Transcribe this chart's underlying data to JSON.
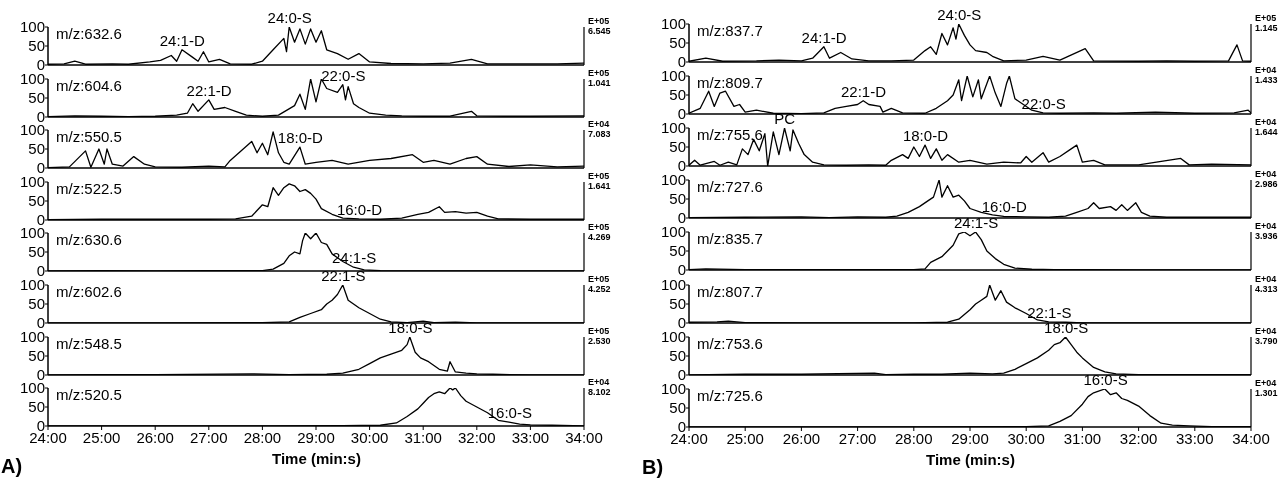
{
  "chart_data": [
    {
      "type": "line",
      "x": [
        24,
        24.3,
        24.5,
        24.7,
        25.2,
        25.5,
        25.9,
        26.1,
        26.3,
        26.4,
        26.5,
        26.7,
        26.8,
        26.9,
        27.0,
        27.2,
        27.4,
        27.8,
        28.0,
        28.2,
        28.4,
        28.45,
        28.5,
        28.6,
        28.7,
        28.8,
        28.9,
        29.0,
        29.1,
        29.2,
        29.4,
        29.6,
        29.8,
        30.0,
        30.4,
        31.0,
        31.5,
        31.9,
        32.2,
        33.0,
        33.5,
        34
      ],
      "values": [
        2,
        3,
        10,
        2,
        3,
        2,
        8,
        12,
        25,
        10,
        40,
        20,
        10,
        35,
        8,
        15,
        3,
        2,
        10,
        40,
        70,
        35,
        100,
        60,
        95,
        55,
        95,
        60,
        90,
        40,
        30,
        15,
        30,
        8,
        4,
        3,
        5,
        15,
        3,
        3,
        3,
        5
      ],
      "color": "#000000",
      "xlim": [
        24,
        34
      ],
      "ylim": [
        0,
        100
      ],
      "yticks": [
        0,
        50,
        100
      ],
      "marker": "none",
      "tick_labels": "y",
      "annotations": [
        "m/z:632.6",
        "E+05",
        "6.545",
        {
          "text": "24:1-D",
          "x": 26.5,
          "y": 40
        },
        {
          "text": "24:0-S",
          "x": 28.5,
          "y": 100
        }
      ]
    },
    {
      "type": "line",
      "x": [
        24,
        24.5,
        25,
        25.5,
        26,
        26.4,
        26.6,
        26.7,
        26.8,
        27.0,
        27.1,
        27.3,
        27.5,
        27.7,
        28.0,
        28.3,
        28.6,
        28.7,
        28.8,
        28.9,
        29.0,
        29.1,
        29.2,
        29.4,
        29.5,
        29.55,
        29.6,
        29.7,
        29.8,
        30.0,
        30.3,
        30.6,
        31.0,
        31.5,
        31.9,
        32.0,
        32.5,
        33,
        34
      ],
      "values": [
        1,
        3,
        2,
        1,
        2,
        5,
        10,
        35,
        15,
        45,
        20,
        25,
        15,
        5,
        2,
        5,
        30,
        60,
        20,
        100,
        40,
        100,
        75,
        65,
        85,
        45,
        80,
        35,
        25,
        10,
        5,
        3,
        2,
        2,
        15,
        3,
        2,
        2,
        3
      ],
      "color": "#000000",
      "xlim": [
        24,
        34
      ],
      "ylim": [
        0,
        100
      ],
      "yticks": [
        0,
        50,
        100
      ],
      "marker": "none",
      "tick_labels": "y",
      "annotations": [
        "m/z:604.6",
        "E+05",
        "1.041",
        {
          "text": "22:1-D",
          "x": 27.0,
          "y": 45
        },
        {
          "text": "22:0-S",
          "x": 29.5,
          "y": 85
        }
      ]
    },
    {
      "type": "line",
      "x": [
        24,
        24.4,
        24.7,
        24.8,
        24.95,
        25.05,
        25.1,
        25.2,
        25.4,
        25.6,
        25.8,
        26,
        26.5,
        27.0,
        27.3,
        27.4,
        27.6,
        27.8,
        27.9,
        28.0,
        28.1,
        28.2,
        28.3,
        28.4,
        28.5,
        28.7,
        28.8,
        29.0,
        29.3,
        29.6,
        30.0,
        30.4,
        30.8,
        31.0,
        31.2,
        31.5,
        31.8,
        32.0,
        32.2,
        32.6,
        33.0,
        33.5,
        34
      ],
      "values": [
        1,
        3,
        45,
        2,
        50,
        10,
        50,
        10,
        5,
        30,
        10,
        3,
        2,
        5,
        3,
        20,
        45,
        70,
        40,
        65,
        35,
        95,
        40,
        15,
        10,
        55,
        10,
        15,
        20,
        10,
        20,
        25,
        35,
        15,
        20,
        10,
        25,
        30,
        10,
        4,
        8,
        3,
        5
      ],
      "color": "#000000",
      "xlim": [
        24,
        34
      ],
      "ylim": [
        0,
        100
      ],
      "yticks": [
        0,
        50,
        100
      ],
      "marker": "none",
      "tick_labels": "y",
      "annotations": [
        "m/z:550.5",
        "E+04",
        "7.083",
        {
          "text": "18:0-D",
          "x": 28.7,
          "y": 55
        }
      ]
    },
    {
      "type": "line",
      "x": [
        24,
        25,
        26,
        27,
        27.5,
        27.8,
        28.0,
        28.1,
        28.2,
        28.3,
        28.4,
        28.5,
        28.6,
        28.7,
        28.8,
        28.9,
        29.0,
        29.1,
        29.3,
        29.5,
        29.8,
        30.2,
        30.6,
        30.9,
        31.1,
        31.3,
        31.4,
        31.6,
        31.8,
        32.0,
        32.2,
        32.4,
        33,
        34
      ],
      "values": [
        1,
        2,
        2,
        2,
        3,
        10,
        40,
        35,
        85,
        65,
        85,
        95,
        90,
        75,
        80,
        70,
        55,
        30,
        15,
        5,
        3,
        2,
        5,
        15,
        20,
        35,
        20,
        22,
        18,
        20,
        10,
        3,
        2,
        2
      ],
      "color": "#000000",
      "xlim": [
        24,
        34
      ],
      "ylim": [
        0,
        100
      ],
      "yticks": [
        0,
        50,
        100
      ],
      "marker": "none",
      "tick_labels": "y",
      "annotations": [
        "m/z:522.5",
        "E+05",
        "1.641",
        {
          "text": "16:0-D",
          "x": 29.8,
          "y": 3
        }
      ]
    },
    {
      "type": "line",
      "x": [
        24,
        25,
        26,
        27,
        28.0,
        28.2,
        28.4,
        28.5,
        28.6,
        28.7,
        28.75,
        28.8,
        28.9,
        29.0,
        29.1,
        29.2,
        29.3,
        29.5,
        29.7,
        29.9,
        30.2,
        31,
        32,
        33,
        34
      ],
      "values": [
        0,
        1,
        0,
        1,
        1,
        5,
        20,
        40,
        50,
        45,
        80,
        100,
        85,
        100,
        75,
        70,
        45,
        25,
        10,
        3,
        1,
        0,
        0,
        0,
        0
      ],
      "color": "#000000",
      "xlim": [
        24,
        34
      ],
      "ylim": [
        0,
        100
      ],
      "yticks": [
        0,
        50,
        100
      ],
      "marker": "none",
      "tick_labels": "y",
      "annotations": [
        "m/z:630.6",
        "E+05",
        "4.269",
        {
          "text": "24:1-S",
          "x": 29.7,
          "y": 10
        }
      ]
    },
    {
      "type": "line",
      "x": [
        24,
        26,
        28,
        28.5,
        28.7,
        28.9,
        29.1,
        29.2,
        29.3,
        29.4,
        29.5,
        29.6,
        29.7,
        29.8,
        30.0,
        30.2,
        30.4,
        30.7,
        31.0,
        31.2,
        31.6,
        32,
        33,
        34
      ],
      "values": [
        0,
        0,
        1,
        3,
        15,
        25,
        35,
        50,
        60,
        75,
        100,
        60,
        50,
        40,
        25,
        10,
        3,
        1,
        5,
        1,
        2,
        0,
        0,
        0
      ],
      "color": "#000000",
      "xlim": [
        24,
        34
      ],
      "ylim": [
        0,
        100
      ],
      "yticks": [
        0,
        50,
        100
      ],
      "marker": "none",
      "tick_labels": "y",
      "annotations": [
        "m/z:602.6",
        "E+05",
        "4.252",
        {
          "text": "22:1-S",
          "x": 29.5,
          "y": 100
        }
      ]
    },
    {
      "type": "line",
      "x": [
        24,
        25,
        26,
        27.8,
        28.5,
        29.2,
        29.5,
        29.8,
        30.0,
        30.2,
        30.4,
        30.6,
        30.7,
        30.75,
        30.85,
        30.95,
        31.1,
        31.3,
        31.45,
        31.5,
        31.6,
        31.8,
        32.0,
        32.3,
        33,
        34
      ],
      "values": [
        0,
        1,
        1,
        3,
        1,
        2,
        5,
        15,
        30,
        45,
        55,
        65,
        80,
        100,
        60,
        45,
        35,
        15,
        10,
        35,
        8,
        5,
        3,
        2,
        0,
        0
      ],
      "color": "#000000",
      "xlim": [
        24,
        34
      ],
      "ylim": [
        0,
        100
      ],
      "yticks": [
        0,
        50,
        100
      ],
      "marker": "none",
      "tick_labels": "y",
      "annotations": [
        "m/z:548.5",
        "E+05",
        "2.530",
        {
          "text": "18:0-S",
          "x": 30.75,
          "y": 100
        }
      ]
    },
    {
      "type": "line",
      "x": [
        24,
        26,
        28,
        29.5,
        30.2,
        30.5,
        30.7,
        30.9,
        31.0,
        31.1,
        31.2,
        31.3,
        31.4,
        31.5,
        31.55,
        31.6,
        31.7,
        31.8,
        32.0,
        32.2,
        32.4,
        32.6,
        32.8,
        33.0,
        33.4,
        34
      ],
      "values": [
        0,
        0,
        0,
        1,
        2,
        8,
        25,
        45,
        60,
        75,
        85,
        90,
        85,
        100,
        95,
        100,
        80,
        65,
        50,
        35,
        15,
        10,
        5,
        3,
        2,
        0
      ],
      "color": "#000000",
      "xlim": [
        24,
        34
      ],
      "xticks": [
        {
          "value": 24,
          "label": "24:00"
        },
        {
          "value": 25,
          "label": "25:00"
        },
        {
          "value": 26,
          "label": "26:00"
        },
        {
          "value": 27,
          "label": "27:00"
        },
        {
          "value": 28,
          "label": "28:00"
        },
        {
          "value": 29,
          "label": "29:00"
        },
        {
          "value": 30,
          "label": "30:00"
        },
        {
          "value": 31,
          "label": "31:00"
        },
        {
          "value": 32,
          "label": "32:00"
        },
        {
          "value": 33,
          "label": "33:00"
        },
        {
          "value": 34,
          "label": "34:00"
        }
      ],
      "ylim": [
        0,
        100
      ],
      "yticks": [
        0,
        50,
        100
      ],
      "marker": "none",
      "xlabel": "Time (min:s)",
      "annotations": [
        "m/z:520.5",
        "E+04",
        "8.102",
        "A)",
        {
          "text": "16:0-S",
          "x": 32.6,
          "y": 10
        }
      ]
    },
    {
      "type": "line",
      "x": [
        24,
        24.3,
        24.6,
        25.2,
        25.6,
        26.0,
        26.2,
        26.4,
        26.5,
        26.7,
        26.9,
        27.2,
        27.6,
        28.0,
        28.2,
        28.3,
        28.4,
        28.5,
        28.6,
        28.7,
        28.75,
        28.8,
        28.9,
        29.0,
        29.1,
        29.3,
        29.4,
        29.6,
        30.0,
        30.3,
        30.6,
        31.05,
        31.2,
        32,
        32.5,
        33.0,
        33.6,
        33.75,
        33.85,
        34
      ],
      "values": [
        2,
        10,
        2,
        3,
        5,
        3,
        10,
        40,
        10,
        25,
        8,
        3,
        3,
        5,
        30,
        40,
        20,
        75,
        45,
        90,
        60,
        100,
        70,
        45,
        30,
        25,
        15,
        3,
        5,
        15,
        5,
        35,
        3,
        2,
        3,
        2,
        3,
        45,
        3,
        2
      ],
      "color": "#000000",
      "xlim": [
        24,
        34
      ],
      "ylim": [
        0,
        100
      ],
      "yticks": [
        0,
        50,
        100
      ],
      "marker": "none",
      "tick_labels": "y",
      "annotations": [
        "m/z:837.7",
        "E+05",
        "1.145",
        {
          "text": "24:1-D",
          "x": 26.4,
          "y": 40
        },
        {
          "text": "24:0-S",
          "x": 28.8,
          "y": 100
        }
      ]
    },
    {
      "type": "line",
      "x": [
        24,
        24.2,
        24.35,
        24.45,
        24.55,
        24.65,
        24.8,
        24.9,
        25.0,
        25.2,
        25.5,
        26,
        26.4,
        26.6,
        26.8,
        27.0,
        27.1,
        27.2,
        27.4,
        27.45,
        27.6,
        27.8,
        28.2,
        28.4,
        28.6,
        28.7,
        28.8,
        28.85,
        28.95,
        29.05,
        29.15,
        29.2,
        29.35,
        29.45,
        29.55,
        29.65,
        29.7,
        29.8,
        29.95,
        30.1,
        30.3,
        30.6,
        31.2,
        31.6,
        32.3,
        33,
        33.7,
        33.95,
        34
      ],
      "values": [
        2,
        15,
        60,
        20,
        55,
        60,
        20,
        25,
        5,
        10,
        2,
        1,
        3,
        15,
        20,
        25,
        35,
        25,
        20,
        5,
        15,
        3,
        2,
        15,
        35,
        50,
        90,
        35,
        100,
        45,
        90,
        40,
        100,
        55,
        20,
        80,
        100,
        40,
        25,
        10,
        3,
        2,
        3,
        2,
        5,
        2,
        3,
        10,
        3
      ],
      "color": "#000000",
      "xlim": [
        24,
        34
      ],
      "ylim": [
        0,
        100
      ],
      "yticks": [
        0,
        50,
        100
      ],
      "marker": "none",
      "tick_labels": "y",
      "annotations": [
        "m/z:809.7",
        "E+04",
        "1.433",
        {
          "text": "22:1-D",
          "x": 27.1,
          "y": 35
        },
        {
          "text": "22:0-S",
          "x": 30.3,
          "y": 3
        }
      ]
    },
    {
      "type": "line",
      "x": [
        24,
        24.1,
        24.2,
        24.45,
        24.55,
        24.7,
        24.85,
        24.95,
        25.05,
        25.15,
        25.25,
        25.35,
        25.4,
        25.5,
        25.6,
        25.7,
        25.8,
        25.85,
        25.95,
        26.05,
        26.2,
        26.4,
        26.8,
        27.2,
        27.5,
        27.6,
        27.8,
        27.9,
        28.0,
        28.1,
        28.2,
        28.3,
        28.4,
        28.5,
        28.6,
        28.8,
        29.0,
        29.3,
        29.6,
        29.9,
        30.0,
        30.1,
        30.3,
        30.4,
        30.6,
        30.8,
        30.9,
        31.0,
        31.2,
        31.4,
        32.0,
        32.75,
        32.9,
        33.3,
        34
      ],
      "values": [
        2,
        15,
        2,
        12,
        2,
        10,
        3,
        45,
        30,
        70,
        40,
        85,
        0,
        90,
        30,
        100,
        40,
        95,
        60,
        30,
        10,
        3,
        2,
        3,
        2,
        15,
        30,
        20,
        50,
        25,
        55,
        20,
        45,
        15,
        30,
        10,
        15,
        5,
        10,
        8,
        25,
        10,
        35,
        10,
        25,
        45,
        55,
        10,
        15,
        3,
        3,
        20,
        3,
        5,
        3
      ],
      "color": "#000000",
      "xlim": [
        24,
        34
      ],
      "ylim": [
        0,
        100
      ],
      "yticks": [
        0,
        50,
        100
      ],
      "marker": "none",
      "tick_labels": "y",
      "annotations": [
        "m/z:755.6",
        "E+04",
        "1.644",
        {
          "text": "PC",
          "x": 25.7,
          "y": 100
        },
        {
          "text": "18:0-D",
          "x": 28.2,
          "y": 55
        }
      ]
    },
    {
      "type": "line",
      "x": [
        24,
        25,
        26,
        26.5,
        27,
        27.5,
        27.7,
        27.9,
        28.1,
        28.25,
        28.35,
        28.45,
        28.5,
        28.6,
        28.7,
        28.8,
        28.9,
        29.0,
        29.2,
        29.4,
        29.6,
        30.0,
        30.4,
        30.7,
        30.9,
        31.1,
        31.2,
        31.3,
        31.5,
        31.6,
        31.7,
        31.8,
        31.95,
        32.05,
        32.2,
        32.5,
        33,
        34
      ],
      "values": [
        1,
        2,
        3,
        1,
        3,
        2,
        5,
        15,
        30,
        45,
        55,
        100,
        55,
        85,
        55,
        60,
        45,
        25,
        15,
        8,
        4,
        3,
        2,
        5,
        15,
        25,
        40,
        25,
        30,
        20,
        35,
        20,
        40,
        15,
        5,
        2,
        2,
        2
      ],
      "color": "#000000",
      "xlim": [
        24,
        34
      ],
      "ylim": [
        0,
        100
      ],
      "yticks": [
        0,
        50,
        100
      ],
      "marker": "none",
      "tick_labels": "y",
      "annotations": [
        "m/z:727.6",
        "E+04",
        "2.986",
        {
          "text": "16:0-D",
          "x": 29.6,
          "y": 4
        }
      ]
    },
    {
      "type": "line",
      "x": [
        24,
        24.3,
        25,
        26,
        27,
        28,
        28.2,
        28.3,
        28.5,
        28.6,
        28.7,
        28.8,
        28.9,
        29.0,
        29.1,
        29.2,
        29.3,
        29.45,
        29.6,
        29.8,
        30.1,
        30.5,
        31,
        32,
        33,
        34
      ],
      "values": [
        1,
        3,
        1,
        1,
        1,
        1,
        3,
        20,
        35,
        50,
        65,
        95,
        100,
        90,
        100,
        80,
        50,
        30,
        15,
        5,
        2,
        1,
        1,
        0,
        0,
        0
      ],
      "color": "#000000",
      "xlim": [
        24,
        34
      ],
      "ylim": [
        0,
        100
      ],
      "yticks": [
        0,
        50,
        100
      ],
      "marker": "none",
      "tick_labels": "y",
      "annotations": [
        "m/z:835.7",
        "E+04",
        "3.936",
        {
          "text": "24:1-S",
          "x": 29.1,
          "y": 100
        }
      ]
    },
    {
      "type": "line",
      "x": [
        24,
        24.5,
        24.7,
        25,
        26,
        27,
        28,
        28.6,
        28.8,
        29.0,
        29.1,
        29.2,
        29.3,
        29.35,
        29.45,
        29.55,
        29.65,
        29.8,
        30.0,
        30.2,
        30.4,
        30.7,
        31,
        32,
        33,
        34
      ],
      "values": [
        2,
        3,
        5,
        1,
        0,
        0,
        0,
        2,
        10,
        35,
        50,
        60,
        70,
        100,
        60,
        85,
        55,
        40,
        25,
        8,
        3,
        2,
        0,
        0,
        0,
        0
      ],
      "color": "#000000",
      "xlim": [
        24,
        34
      ],
      "ylim": [
        0,
        100
      ],
      "yticks": [
        0,
        50,
        100
      ],
      "marker": "none",
      "tick_labels": "y",
      "annotations": [
        "m/z:807.7",
        "E+04",
        "4.313",
        {
          "text": "22:1-S",
          "x": 30.4,
          "y": 3
        }
      ]
    },
    {
      "type": "line",
      "x": [
        24,
        25,
        26,
        27.3,
        27.5,
        28,
        28.5,
        29.0,
        29.4,
        29.6,
        29.8,
        30.0,
        30.2,
        30.4,
        30.5,
        30.6,
        30.7,
        30.8,
        30.9,
        31.0,
        31.2,
        31.4,
        31.6,
        32,
        33,
        34
      ],
      "values": [
        0,
        2,
        2,
        5,
        1,
        2,
        2,
        5,
        3,
        5,
        15,
        30,
        45,
        65,
        80,
        85,
        100,
        80,
        60,
        45,
        20,
        8,
        3,
        1,
        1,
        1
      ],
      "color": "#000000",
      "xlim": [
        24,
        34
      ],
      "ylim": [
        0,
        100
      ],
      "yticks": [
        0,
        50,
        100
      ],
      "marker": "none",
      "tick_labels": "y",
      "annotations": [
        "m/z:753.6",
        "E+04",
        "3.790",
        {
          "text": "18:0-S",
          "x": 30.7,
          "y": 100
        }
      ]
    },
    {
      "type": "line",
      "x": [
        24,
        26,
        28,
        30,
        30.4,
        30.6,
        30.8,
        31.0,
        31.1,
        31.2,
        31.3,
        31.4,
        31.5,
        31.6,
        31.7,
        31.8,
        32.0,
        32.2,
        32.4,
        32.6,
        32.9,
        33.3,
        34
      ],
      "values": [
        0,
        0,
        0,
        1,
        3,
        15,
        30,
        60,
        80,
        90,
        95,
        100,
        85,
        90,
        75,
        70,
        55,
        30,
        10,
        5,
        3,
        1,
        1
      ],
      "color": "#000000",
      "xlim": [
        24,
        34
      ],
      "xticks": [
        {
          "value": 24,
          "label": "24:00"
        },
        {
          "value": 25,
          "label": "25:00"
        },
        {
          "value": 26,
          "label": "26:00"
        },
        {
          "value": 27,
          "label": "27:00"
        },
        {
          "value": 28,
          "label": "28:00"
        },
        {
          "value": 29,
          "label": "29:00"
        },
        {
          "value": 30,
          "label": "30:00"
        },
        {
          "value": 31,
          "label": "31:00"
        },
        {
          "value": 32,
          "label": "32:00"
        },
        {
          "value": 33,
          "label": "33:00"
        },
        {
          "value": 34,
          "label": "34:00"
        }
      ],
      "ylim": [
        0,
        100
      ],
      "yticks": [
        0,
        50,
        100
      ],
      "marker": "none",
      "xlabel": "Time (min:s)",
      "annotations": [
        "m/z:725.6",
        "E+04",
        "1.301",
        "B)",
        {
          "text": "16:0-S",
          "x": 31.4,
          "y": 100
        }
      ]
    }
  ]
}
